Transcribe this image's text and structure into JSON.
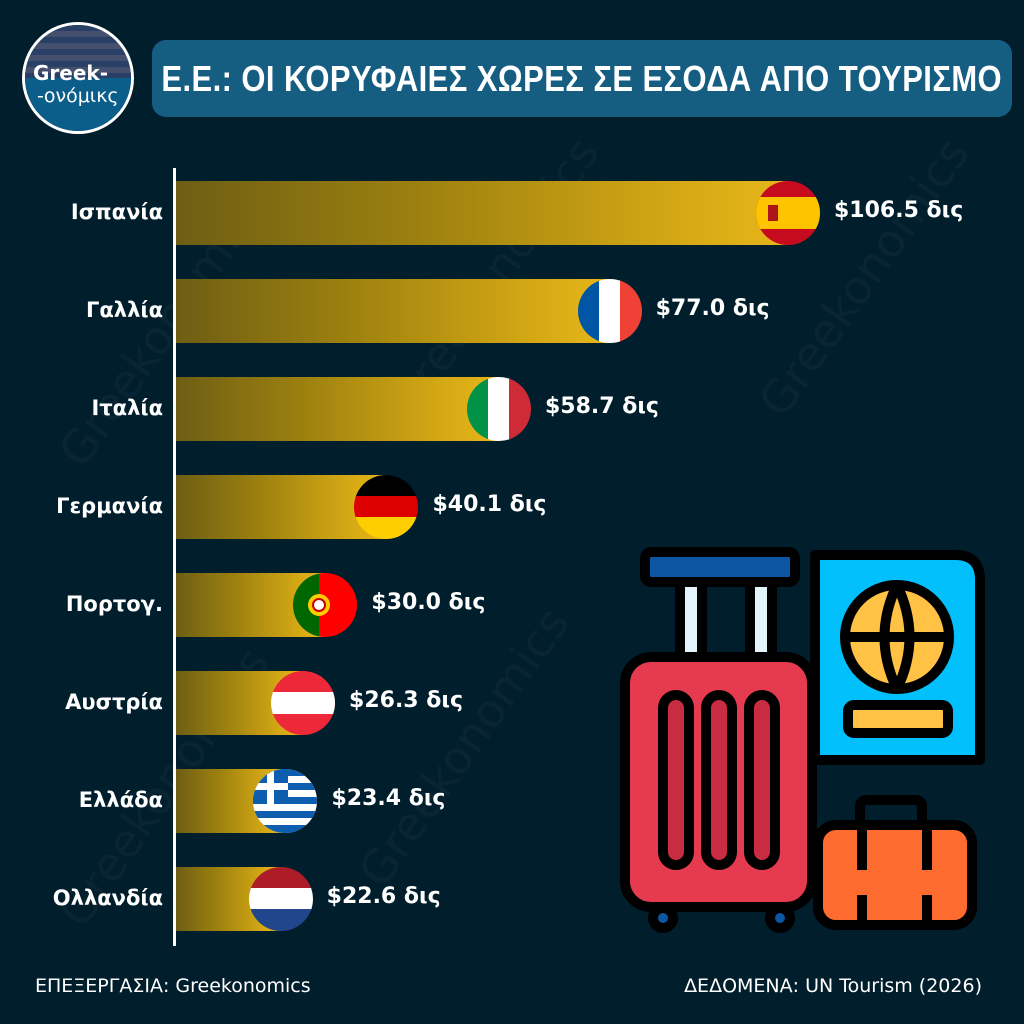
{
  "logo": {
    "line1": "Greek-",
    "line2": "-ονόμικς"
  },
  "title": "Ε.Ε.: ΟΙ ΚΟΡΥΦΑΙΕΣ ΧΩΡΕΣ ΣΕ ΕΣΟΔΑ ΑΠΟ ΤΟΥΡΙΣΜΟ",
  "watermark": "Greekonomics",
  "chart_data": {
    "type": "bar",
    "orientation": "horizontal",
    "title": "Ε.Ε.: ΟΙ ΚΟΡΥΦΑΙΕΣ ΧΩΡΕΣ ΣΕ ΕΣΟΔΑ ΑΠΟ ΤΟΥΡΙΣΜΟ",
    "unit": "δις $",
    "categories": [
      "Ισπανία",
      "Γαλλία",
      "Ιταλία",
      "Γερμανία",
      "Πορτογ.",
      "Αυστρία",
      "Ελλάδα",
      "Ολλανδία"
    ],
    "values": [
      106.5,
      77.0,
      58.7,
      40.1,
      30.0,
      26.3,
      23.4,
      22.6
    ],
    "value_labels": [
      "$106.5 δις",
      "$77.0 δις",
      "$58.7 δις",
      "$40.1 δις",
      "$30.0 δις",
      "$26.3 δις",
      "$23.4 δις",
      "$22.6 δις"
    ],
    "flags": [
      "spain",
      "france",
      "italy",
      "germany",
      "portugal",
      "austria",
      "greece",
      "netherlands"
    ],
    "bar_color": "#d8ab15",
    "grid": false
  },
  "footer": {
    "left": "ΕΠΕΞΕΡΓΑΣΙΑ: Greekonomics",
    "right": "ΔΕΔΟΜΕΝΑ: UN Tourism (2026)"
  }
}
